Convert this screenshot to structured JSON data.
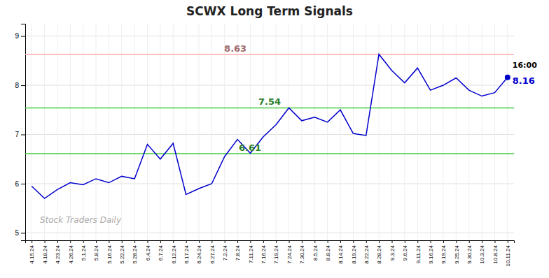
{
  "chart_data": {
    "type": "line",
    "title": "SCWX Long Term Signals",
    "categories": [
      "4.15.24",
      "4.18.24",
      "4.23.24",
      "4.26.24",
      "5.1.24",
      "5.8.24",
      "5.16.24",
      "5.22.24",
      "5.28.24",
      "6.4.24",
      "6.7.24",
      "6.12.24",
      "6.17.24",
      "6.24.24",
      "6.27.24",
      "7.2.24",
      "7.8.24",
      "7.11.24",
      "7.16.24",
      "7.19.24",
      "7.24.24",
      "7.30.24",
      "8.5.24",
      "8.8.24",
      "8.14.24",
      "8.19.24",
      "8.22.24",
      "8.28.24",
      "9.3.24",
      "9.6.24",
      "9.11.24",
      "9.16.24",
      "9.19.24",
      "9.25.24",
      "9.30.24",
      "10.3.24",
      "10.8.24",
      "10.11.24"
    ],
    "values": [
      5.95,
      5.7,
      5.88,
      6.02,
      5.98,
      6.1,
      6.02,
      6.15,
      6.1,
      6.8,
      6.5,
      6.82,
      5.78,
      5.9,
      6.0,
      6.55,
      6.9,
      6.62,
      6.95,
      7.2,
      7.54,
      7.28,
      7.35,
      7.25,
      7.5,
      7.02,
      6.98,
      8.63,
      8.3,
      8.05,
      8.35,
      7.9,
      8.0,
      8.15,
      7.9,
      7.78,
      7.85,
      8.16
    ],
    "color": "#0000cc",
    "hlines": [
      {
        "value": 8.63,
        "color": "#ffaaaa"
      },
      {
        "value": 7.54,
        "color": "#44cc44"
      },
      {
        "value": 6.61,
        "color": "#44cc44"
      }
    ],
    "last_label": "16:00",
    "watermark": "Stock Traders Daily",
    "ylim": [
      4.85,
      9.25
    ],
    "yticks": [
      5,
      6,
      7,
      8,
      9
    ],
    "grid": true
  }
}
